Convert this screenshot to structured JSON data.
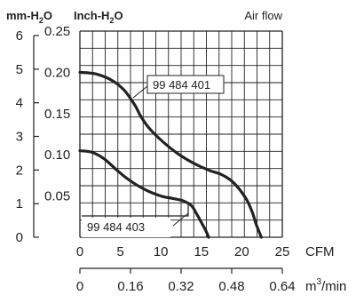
{
  "chart_data": {
    "type": "line",
    "title": "Air flow",
    "left_axis_label": {
      "base": "mm-H",
      "sub": "2",
      "tail": "O"
    },
    "inner_axis_label": {
      "base": "Inch-H",
      "sub": "2",
      "tail": "O"
    },
    "x_unit": "CFM",
    "x2_unit": {
      "base": "m",
      "sup": "3",
      "tail": "/min"
    },
    "x": {
      "min": 0,
      "max": 25,
      "ticks": [
        "0",
        "5",
        "10",
        "15",
        "20",
        "25"
      ]
    },
    "x2": {
      "min": 0,
      "max": 0.64,
      "ticks": [
        "0",
        "0.16",
        "0.32",
        "0.48",
        "0.64"
      ]
    },
    "y_mm": {
      "min": 0,
      "max": 6,
      "ticks": [
        "0",
        "1",
        "2",
        "3",
        "4",
        "5",
        "6"
      ]
    },
    "y_inch": {
      "min": 0,
      "max": 0.25,
      "ticks": [
        "0.05",
        "0.10",
        "0.15",
        "0.20",
        "0.25"
      ]
    },
    "grid": true,
    "series": [
      {
        "name": "99 484 401",
        "x": [
          0,
          2,
          4,
          5.5,
          6.8,
          7.5,
          8.5,
          10,
          12,
          14,
          16,
          17.5,
          19,
          20.5,
          21.3,
          21.8,
          22.4
        ],
        "y": [
          0.2,
          0.198,
          0.19,
          0.178,
          0.16,
          0.147,
          0.133,
          0.118,
          0.102,
          0.09,
          0.081,
          0.076,
          0.066,
          0.047,
          0.03,
          0.015,
          0.0
        ]
      },
      {
        "name": "99 484 403",
        "x": [
          0,
          1.5,
          3,
          4.5,
          6,
          8,
          10,
          11.5,
          12.8,
          13.8,
          14.5,
          15,
          15.5,
          15.9
        ],
        "y": [
          0.105,
          0.103,
          0.095,
          0.082,
          0.07,
          0.058,
          0.05,
          0.047,
          0.044,
          0.038,
          0.027,
          0.018,
          0.009,
          0.0
        ]
      }
    ]
  }
}
